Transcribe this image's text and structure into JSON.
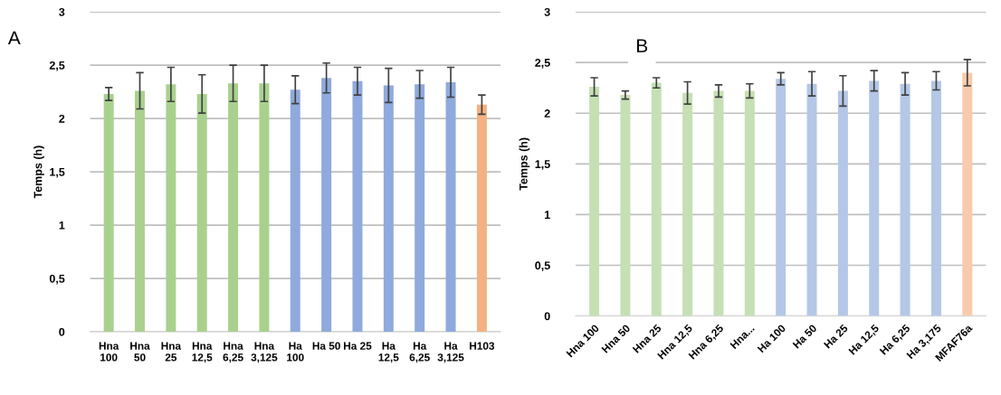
{
  "chart_data": [
    {
      "type": "bar",
      "ylabel": "Temps (h)",
      "annotations": [
        "A"
      ],
      "categories": [
        "Hna\n100",
        "Hna\n50",
        "Hna\n25",
        "Hna\n12,5",
        "Hna\n6,25",
        "Hna\n3,125",
        "Ha\n100",
        "Ha 50",
        "Ha 25",
        "Ha\n12,5",
        "Ha\n6,25",
        "Ha\n3,125",
        "H103"
      ],
      "values": [
        2.23,
        2.26,
        2.32,
        2.23,
        2.33,
        2.33,
        2.27,
        2.38,
        2.35,
        2.31,
        2.32,
        2.34,
        2.13
      ],
      "errors": [
        0.06,
        0.17,
        0.16,
        0.18,
        0.17,
        0.17,
        0.13,
        0.14,
        0.13,
        0.16,
        0.13,
        0.14,
        0.09
      ],
      "colors": [
        "#a9d18e",
        "#a9d18e",
        "#a9d18e",
        "#a9d18e",
        "#a9d18e",
        "#a9d18e",
        "#8faadc",
        "#8faadc",
        "#8faadc",
        "#8faadc",
        "#8faadc",
        "#8faadc",
        "#f4b183"
      ],
      "ylim": [
        0,
        3
      ],
      "yticks": [
        0,
        {
          "value": 0.5,
          "label": "0,5"
        },
        1,
        {
          "value": 1.5,
          "label": "1,5"
        },
        2,
        {
          "value": 2.5,
          "label": "2,5"
        },
        3
      ],
      "grid": "y"
    },
    {
      "type": "bar",
      "ylabel": "Temps (h)",
      "annotations": [
        "B"
      ],
      "categories": [
        "Hna 100",
        "Hna 50",
        "Hna 25",
        "Hna 12,5",
        "Hna 6,25",
        "Hna...",
        "Ha 100",
        "Ha 50",
        "Ha 25",
        "Ha 12,5",
        "Ha 6,25",
        "Ha 3,175",
        "MFAF76a"
      ],
      "values": [
        2.26,
        2.18,
        2.3,
        2.2,
        2.22,
        2.22,
        2.34,
        2.29,
        2.22,
        2.32,
        2.29,
        2.32,
        2.4
      ],
      "errors": [
        0.09,
        0.04,
        0.05,
        0.11,
        0.06,
        0.07,
        0.06,
        0.12,
        0.15,
        0.1,
        0.11,
        0.09,
        0.13
      ],
      "colors": [
        "#c5e0b4",
        "#c5e0b4",
        "#c5e0b4",
        "#c5e0b4",
        "#c5e0b4",
        "#c5e0b4",
        "#b4c7e7",
        "#b4c7e7",
        "#b4c7e7",
        "#b4c7e7",
        "#b4c7e7",
        "#b4c7e7",
        "#f8cbad"
      ],
      "ylim": [
        0,
        3
      ],
      "yticks": [
        0,
        {
          "value": 0.5,
          "label": "0,5"
        },
        1,
        {
          "value": 1.5,
          "label": "1,5"
        },
        2,
        {
          "value": 2.5,
          "label": "2,5"
        },
        3
      ],
      "grid": "y"
    }
  ]
}
